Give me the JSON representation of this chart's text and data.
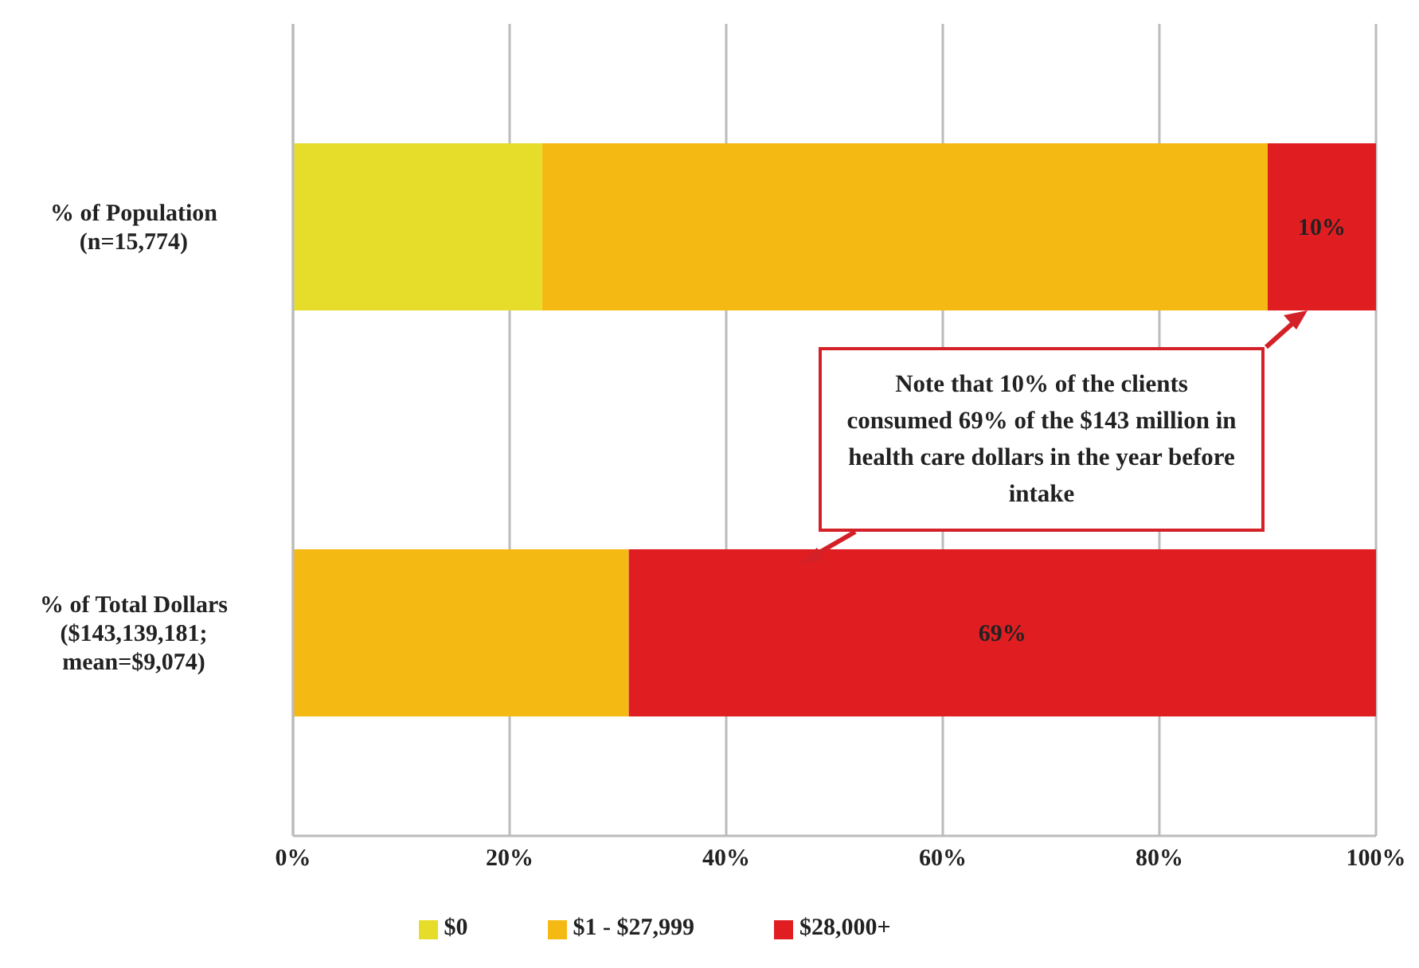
{
  "chart_data": {
    "type": "bar",
    "orientation": "horizontal",
    "stacked": true,
    "categories": [
      "% of Population\n(n=15,774)",
      "% of Total Dollars\n($143,139,181;\nmean=$9,074)"
    ],
    "series": [
      {
        "name": "$0",
        "color": "#e6dc2a",
        "values": [
          23,
          0
        ]
      },
      {
        "name": "$1 - $27,999",
        "color": "#f5b914",
        "values": [
          67,
          31
        ]
      },
      {
        "name": "$28,000+",
        "color": "#e01e22",
        "values": [
          10,
          69
        ],
        "value_labels": [
          "10%",
          "69%"
        ]
      }
    ],
    "xlim": [
      0,
      100
    ],
    "xticks": [
      {
        "value": 0,
        "label": "0%"
      },
      {
        "value": 20,
        "label": "20%"
      },
      {
        "value": 40,
        "label": "40%"
      },
      {
        "value": 60,
        "label": "60%"
      },
      {
        "value": 80,
        "label": "80%"
      },
      {
        "value": 100,
        "label": "100%"
      }
    ],
    "grid": "x",
    "legend": "bottom",
    "annotations": [
      "Note that 10% of the clients consumed 69% of the $143 million in health care dollars in the year before intake"
    ]
  }
}
